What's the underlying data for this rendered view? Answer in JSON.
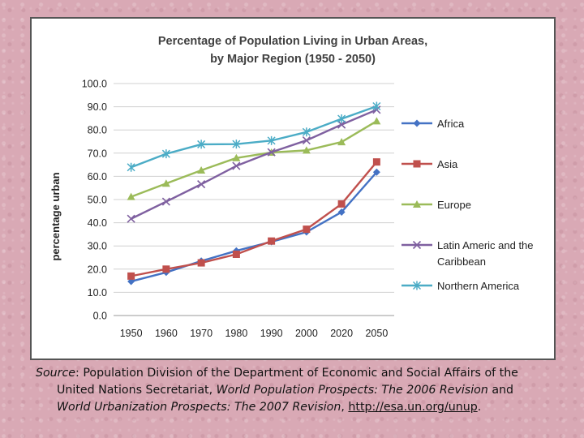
{
  "chart_data": {
    "type": "line",
    "title_line1": "Percentage of Population Living in Urban Areas,",
    "title_line2": "by Major Region (1950 - 2050)",
    "xlabel": "",
    "ylabel": "percentage urban",
    "ylim": [
      0,
      100
    ],
    "yticks": [
      "0.0",
      "10.0",
      "20.0",
      "30.0",
      "40.0",
      "50.0",
      "60.0",
      "70.0",
      "80.0",
      "90.0",
      "100.0"
    ],
    "x": [
      "1950",
      "1960",
      "1970",
      "1980",
      "1990",
      "2000",
      "2020",
      "2050"
    ],
    "grid": true,
    "legend_position": "right",
    "series": [
      {
        "name": "Africa",
        "color": "#4472c4",
        "marker": "diamond",
        "values": [
          14.7,
          18.6,
          23.5,
          27.9,
          31.8,
          36.0,
          44.6,
          61.8
        ]
      },
      {
        "name": "Asia",
        "color": "#c0504d",
        "marker": "square",
        "values": [
          17.0,
          20.0,
          22.7,
          26.4,
          32.1,
          37.2,
          48.1,
          66.2
        ]
      },
      {
        "name": "Europe",
        "color": "#9bbb59",
        "marker": "triangle",
        "values": [
          51.2,
          56.9,
          62.6,
          67.9,
          70.3,
          71.2,
          74.8,
          83.8
        ]
      },
      {
        "name": "Latin Americ and the Caribbean",
        "legend_lines": [
          "Latin Americ and the",
          "Caribbean"
        ],
        "color": "#7f60a0",
        "marker": "x",
        "values": [
          41.7,
          49.1,
          56.6,
          64.5,
          70.4,
          75.5,
          82.3,
          88.7
        ]
      },
      {
        "name": "Northern America",
        "color": "#4bacc6",
        "marker": "star",
        "values": [
          63.9,
          69.7,
          73.8,
          73.9,
          75.4,
          79.1,
          84.8,
          90.2
        ]
      }
    ]
  },
  "caption": {
    "source_label": "Source",
    "line1_rest": ": Population Division of the Department of Economic and Social Affairs of the",
    "line2_a": "United Nations Secretariat, ",
    "line2_italic": "World Population Prospects: The 2006 Revision",
    "line2_b": " and",
    "line3_italic": "World Urbanization Prospects: The 2007 Revision",
    "line3_b": ", ",
    "link": "http://esa.un.org/unup",
    "line3_end": "."
  }
}
